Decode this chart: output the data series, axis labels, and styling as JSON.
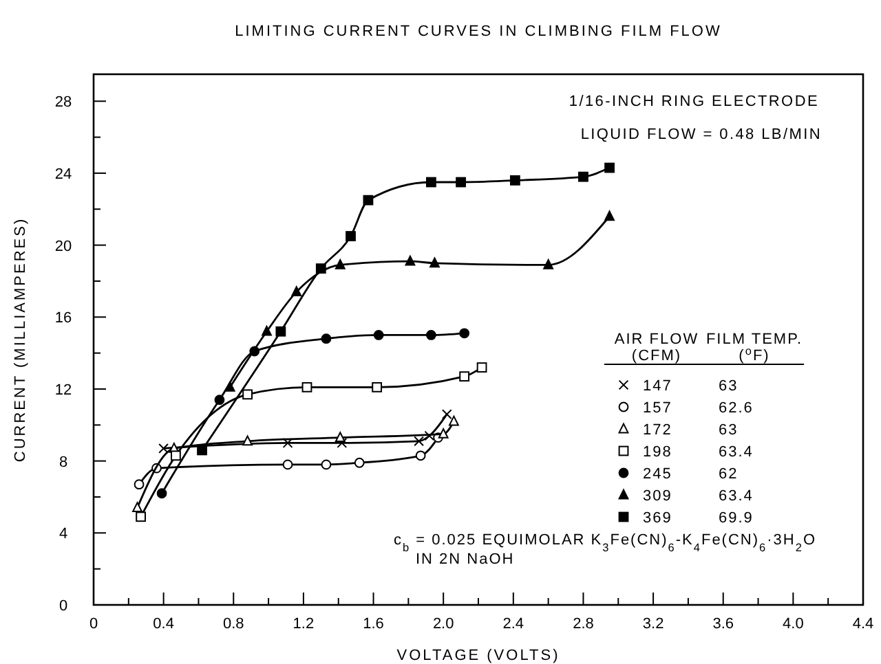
{
  "chart_data": {
    "type": "line",
    "title": "LIMITING CURRENT CURVES IN CLIMBING FILM FLOW",
    "xlabel": "VOLTAGE (VOLTS)",
    "ylabel": "CURRENT (MILLIAMPERES)",
    "legend_title": "AIR FLOW (CFM)",
    "legend": "center right",
    "grid": false,
    "xlim": [
      0,
      4.4
    ],
    "ylim": [
      0,
      29.5
    ],
    "xticks": [
      0,
      {
        "value": 0.2,
        "label": null
      },
      0.4,
      {
        "value": 0.6,
        "label": null
      },
      0.8,
      {
        "value": 1.0,
        "label": null
      },
      1.2,
      {
        "value": 1.4,
        "label": null
      },
      1.6,
      {
        "value": 1.8,
        "label": null
      },
      {
        "value": 2.0,
        "label": "2.0"
      },
      {
        "value": 2.2,
        "label": null
      },
      2.4,
      {
        "value": 2.6,
        "label": null
      },
      2.8,
      {
        "value": 3.0,
        "label": null
      },
      3.2,
      {
        "value": 3.4,
        "label": null
      },
      3.6,
      {
        "value": 3.8,
        "label": null
      },
      {
        "value": 4.0,
        "label": "4.0"
      },
      {
        "value": 4.2,
        "label": null
      },
      4.4
    ],
    "yticks": [
      0,
      {
        "value": 2,
        "label": null
      },
      4,
      {
        "value": 6,
        "label": null
      },
      8,
      {
        "value": 10,
        "label": null
      },
      12,
      {
        "value": 14,
        "label": null
      },
      16,
      {
        "value": 18,
        "label": null
      },
      20,
      {
        "value": 22,
        "label": null
      },
      24,
      {
        "value": 26,
        "label": null
      },
      28
    ],
    "annotations": [
      "1/16-INCH RING ELECTRODE",
      "LIQUID FLOW = 0.48 LB/MIN",
      "FILM TEMP. ($^{o}$F)",
      "63",
      "62.6",
      "63",
      "63.4",
      "62",
      "63.4",
      "69.9",
      "c$_{b}$ = 0.025 EQUIMOLAR K$_{3}$Fe(CN)$_{6}$-K$_{4}$Fe(CN)$_{6}$·3H$_{2}$O",
      "IN 2N NaOH"
    ],
    "series": [
      {
        "name": "147",
        "color": "#000000",
        "marker": "cross",
        "x": [
          0.4,
          1.11,
          1.42,
          1.86,
          1.92,
          2.02
        ],
        "values": [
          8.7,
          9.0,
          9.0,
          9.1,
          9.4,
          10.6
        ]
      },
      {
        "name": "157",
        "color": "#ffffff",
        "marker": "circle",
        "x": [
          0.26,
          0.36,
          1.11,
          1.33,
          1.52,
          1.87,
          1.97
        ],
        "values": [
          6.7,
          7.6,
          7.8,
          7.8,
          7.9,
          8.3,
          9.3
        ]
      },
      {
        "name": "172",
        "color": "#ffffff",
        "marker": "triangle",
        "x": [
          0.25,
          0.46,
          0.88,
          1.41,
          2.0,
          2.06
        ],
        "values": [
          5.4,
          8.7,
          9.1,
          9.3,
          9.5,
          10.2
        ]
      },
      {
        "name": "198",
        "color": "#ffffff",
        "marker": "square",
        "x": [
          0.27,
          0.47,
          0.88,
          1.22,
          1.62,
          2.12,
          2.22
        ],
        "values": [
          4.9,
          8.3,
          11.7,
          12.1,
          12.1,
          12.7,
          13.2
        ]
      },
      {
        "name": "245",
        "color": "#000000",
        "marker": "circle",
        "x": [
          0.39,
          0.72,
          0.92,
          1.33,
          1.63,
          1.93,
          2.12
        ],
        "values": [
          6.2,
          11.4,
          14.1,
          14.8,
          15.0,
          15.0,
          15.1
        ]
      },
      {
        "name": "309",
        "color": "#000000",
        "marker": "triangle",
        "x": [
          0.78,
          0.99,
          1.16,
          1.41,
          1.81,
          1.95,
          2.6,
          2.95
        ],
        "values": [
          12.1,
          15.2,
          17.4,
          18.9,
          19.1,
          19.0,
          18.9,
          21.6
        ]
      },
      {
        "name": "369",
        "color": "#000000",
        "marker": "square",
        "x": [
          0.62,
          1.07,
          1.3,
          1.47,
          1.57,
          1.93,
          2.1,
          2.41,
          2.8,
          2.95
        ],
        "values": [
          8.6,
          15.2,
          18.7,
          20.5,
          22.5,
          23.5,
          23.5,
          23.6,
          23.8,
          24.3
        ]
      }
    ]
  }
}
